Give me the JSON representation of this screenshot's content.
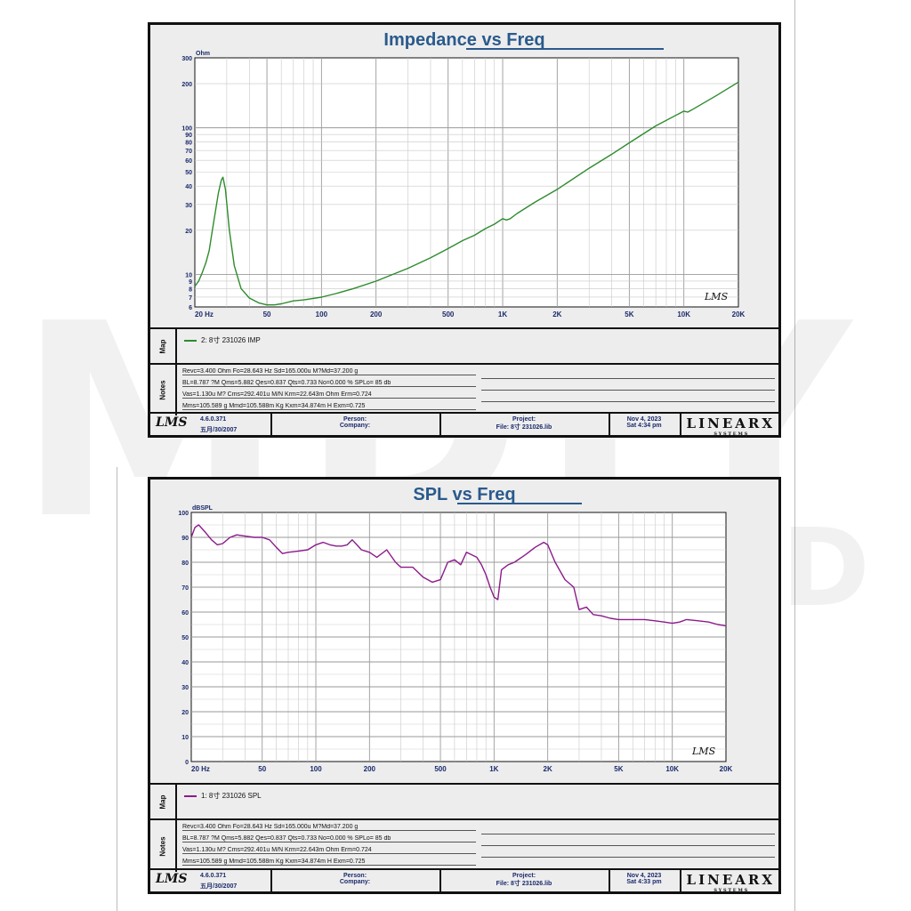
{
  "watermark": {
    "line1": "MDIY",
    "line2": "SOUND"
  },
  "panels": [
    {
      "title": "Impedance vs Freq",
      "unit_label": "Ohm",
      "legend": "2: 8寸 231026 IMP",
      "color": "#2e8b2e",
      "lms_mark": "LMS",
      "notes": [
        "Revc=3.400 Ohm  Fo=28.643 Hz  Sd=165.000u M?Md=37.200 g",
        "BL=8.787 ?M  Qms=5.882  Qes=0.837  Qts=0.733  No=0.000 %  SPLo= 85 db",
        "Vas=1.130u M? Cms=292.401u M/N  Krm=22.643m Ohm  Erm=0.724",
        "Mms=105.589 g  Mmd=105.588m Kg  Kxm=34.874m H  Exm=0.725"
      ],
      "footer": {
        "version": "4.6.0.371",
        "date_cn": "五月/30/2007",
        "person": "Person:",
        "company": "Company:",
        "project": "Project:",
        "file": "File: 8寸 231026.lib",
        "date": "Nov  4, 2023",
        "time": "Sat  4:34 pm",
        "brand": "LINEARX",
        "brand_sub": "S Y S T E M S"
      }
    },
    {
      "title": "SPL vs Freq",
      "unit_label": "dBSPL",
      "legend": "1: 8寸 231026 SPL",
      "color": "#8b1a8b",
      "lms_mark": "LMS",
      "notes": [
        "Revc=3.400 Ohm  Fo=28.643 Hz  Sd=165.000u M?Md=37.200 g",
        "BL=8.787 ?M  Qms=5.882  Qes=0.837  Qts=0.733  No=0.000 %  SPLo= 85 db",
        "Vas=1.130u M? Cms=292.401u M/N  Krm=22.643m Ohm  Erm=0.724",
        "Mms=105.589 g  Mmd=105.588m Kg  Kxm=34.874m H  Exm=0.725"
      ],
      "footer": {
        "version": "4.6.0.371",
        "date_cn": "五月/30/2007",
        "person": "Person:",
        "company": "Company:",
        "project": "Project:",
        "file": "File: 8寸 231026.lib",
        "date": "Nov  4, 2023",
        "time": "Sat  4:33 pm",
        "brand": "LINEARX",
        "brand_sub": "S Y S T E M S"
      }
    }
  ],
  "chart_data": [
    {
      "type": "line",
      "title": "Impedance vs Freq",
      "xlabel": "",
      "ylabel": "Ohm",
      "xscale": "log",
      "yscale": "log",
      "xlim": [
        20,
        20000
      ],
      "ylim": [
        6,
        300
      ],
      "xticks": [
        {
          "v": 20,
          "label": "20 Hz"
        },
        {
          "v": 50,
          "label": "50"
        },
        {
          "v": 100,
          "label": "100"
        },
        {
          "v": 200,
          "label": "200"
        },
        {
          "v": 500,
          "label": "500"
        },
        {
          "v": 1000,
          "label": "1K"
        },
        {
          "v": 2000,
          "label": "2K"
        },
        {
          "v": 5000,
          "label": "5K"
        },
        {
          "v": 10000,
          "label": "10K"
        },
        {
          "v": 20000,
          "label": "20K"
        }
      ],
      "yticks": [
        {
          "v": 300,
          "label": "300"
        },
        {
          "v": 200,
          "label": "200"
        },
        {
          "v": 100,
          "label": "100"
        },
        {
          "v": 90,
          "label": "90"
        },
        {
          "v": 80,
          "label": "80"
        },
        {
          "v": 70,
          "label": "70"
        },
        {
          "v": 60,
          "label": "60"
        },
        {
          "v": 50,
          "label": "50"
        },
        {
          "v": 40,
          "label": "40"
        },
        {
          "v": 30,
          "label": "30"
        },
        {
          "v": 20,
          "label": "20"
        },
        {
          "v": 10,
          "label": "10"
        },
        {
          "v": 9,
          "label": "9"
        },
        {
          "v": 8,
          "label": "8"
        },
        {
          "v": 7,
          "label": "7"
        },
        {
          "v": 6,
          "label": "6"
        }
      ],
      "grid": true,
      "series": [
        {
          "name": "2: 8寸 231026 IMP",
          "x": [
            20,
            21,
            22,
            23,
            24,
            25,
            26,
            27,
            28,
            28.6,
            29.5,
            31,
            33,
            36,
            40,
            45,
            50,
            55,
            60,
            70,
            80,
            100,
            120,
            150,
            200,
            300,
            400,
            500,
            600,
            700,
            800,
            900,
            1000,
            1050,
            1100,
            1200,
            1500,
            2000,
            3000,
            4000,
            5000,
            7000,
            10000,
            10500,
            11000,
            15000,
            20000
          ],
          "y": [
            8.3,
            9.0,
            10.3,
            12.0,
            14.5,
            20.0,
            27.0,
            36.0,
            44.0,
            46.0,
            38.0,
            20.0,
            11.5,
            8.0,
            6.9,
            6.4,
            6.2,
            6.2,
            6.3,
            6.6,
            6.7,
            7.0,
            7.4,
            8.0,
            9.0,
            11.0,
            13.0,
            15.0,
            17.0,
            18.5,
            20.5,
            22.0,
            24.0,
            23.5,
            24.0,
            26.0,
            31.0,
            38.0,
            53.0,
            66.0,
            79.0,
            103.0,
            130.0,
            128.0,
            132.0,
            165.0,
            205.0
          ]
        }
      ]
    },
    {
      "type": "line",
      "title": "SPL vs Freq",
      "xlabel": "",
      "ylabel": "dBSPL",
      "xscale": "log",
      "yscale": "linear",
      "xlim": [
        20,
        20000
      ],
      "ylim": [
        0,
        100
      ],
      "xticks": [
        {
          "v": 20,
          "label": "20 Hz"
        },
        {
          "v": 50,
          "label": "50"
        },
        {
          "v": 100,
          "label": "100"
        },
        {
          "v": 200,
          "label": "200"
        },
        {
          "v": 500,
          "label": "500"
        },
        {
          "v": 1000,
          "label": "1K"
        },
        {
          "v": 2000,
          "label": "2K"
        },
        {
          "v": 5000,
          "label": "5K"
        },
        {
          "v": 10000,
          "label": "10K"
        },
        {
          "v": 20000,
          "label": "20K"
        }
      ],
      "yticks": [
        {
          "v": 100,
          "label": "100"
        },
        {
          "v": 90,
          "label": "90"
        },
        {
          "v": 80,
          "label": "80"
        },
        {
          "v": 70,
          "label": "70"
        },
        {
          "v": 60,
          "label": "60"
        },
        {
          "v": 50,
          "label": "50"
        },
        {
          "v": 40,
          "label": "40"
        },
        {
          "v": 30,
          "label": "30"
        },
        {
          "v": 20,
          "label": "20"
        },
        {
          "v": 10,
          "label": "10"
        },
        {
          "v": 0,
          "label": "0"
        }
      ],
      "grid": true,
      "series": [
        {
          "name": "1: 8寸 231026 SPL",
          "x": [
            20,
            21,
            22,
            24,
            26,
            28,
            30,
            33,
            36,
            40,
            45,
            50,
            55,
            60,
            65,
            70,
            80,
            90,
            100,
            110,
            120,
            130,
            140,
            150,
            160,
            170,
            180,
            200,
            220,
            250,
            280,
            300,
            350,
            400,
            450,
            500,
            550,
            600,
            650,
            700,
            800,
            850,
            900,
            950,
            1000,
            1050,
            1100,
            1200,
            1300,
            1500,
            1700,
            1900,
            2000,
            2200,
            2500,
            2800,
            3000,
            3300,
            3600,
            4000,
            4500,
            5000,
            6000,
            7000,
            8000,
            9000,
            10000,
            11000,
            12000,
            14000,
            16000,
            18000,
            20000
          ],
          "y": [
            90,
            94,
            95,
            92,
            89,
            87,
            87.5,
            90,
            91,
            90.5,
            90,
            90,
            89,
            86,
            83.5,
            84,
            84.5,
            85,
            87,
            88,
            87,
            86.5,
            86.5,
            87,
            89,
            87,
            85,
            84,
            82,
            85,
            80,
            78,
            78,
            74,
            72,
            73,
            80,
            81,
            79,
            84,
            82,
            79,
            75,
            70,
            66,
            65,
            77,
            79,
            80,
            83,
            86,
            88,
            87,
            80,
            73,
            70,
            61,
            62,
            59,
            58.5,
            57.5,
            57,
            57,
            57,
            56.5,
            56,
            55.5,
            56,
            57,
            56.5,
            56,
            55,
            54.5
          ]
        }
      ]
    }
  ]
}
